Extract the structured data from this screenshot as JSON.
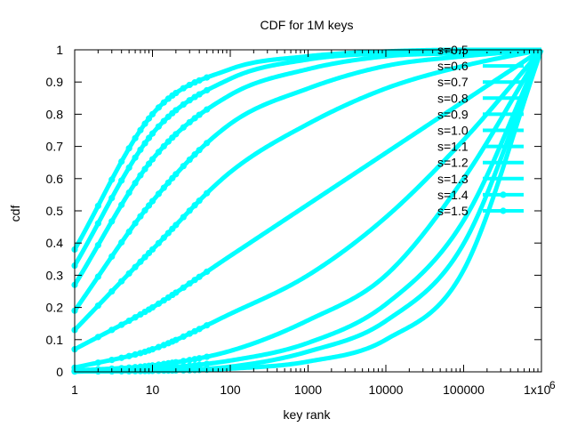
{
  "chart_data": {
    "type": "line",
    "title": "CDF for 1M keys",
    "xlabel": "key rank",
    "ylabel": "cdf",
    "x_scale": "log",
    "xlim": [
      1,
      1000000
    ],
    "ylim": [
      0,
      1
    ],
    "grid": false,
    "legend_position": "right",
    "series_color": "#00ffff",
    "x_ticks": [
      {
        "value": 1,
        "label": "1"
      },
      {
        "value": 10,
        "label": "10"
      },
      {
        "value": 100,
        "label": "100"
      },
      {
        "value": 1000,
        "label": "1000"
      },
      {
        "value": 10000,
        "label": "10000"
      },
      {
        "value": 100000,
        "label": "100000"
      },
      {
        "value": 1000000,
        "label": "1x10",
        "exponent": "6"
      }
    ],
    "y_ticks": [
      {
        "value": 0,
        "label": "0"
      },
      {
        "value": 0.1,
        "label": "0.1"
      },
      {
        "value": 0.2,
        "label": "0.2"
      },
      {
        "value": 0.3,
        "label": "0.3"
      },
      {
        "value": 0.4,
        "label": "0.4"
      },
      {
        "value": 0.5,
        "label": "0.5"
      },
      {
        "value": 0.6,
        "label": "0.6"
      },
      {
        "value": 0.7,
        "label": "0.7"
      },
      {
        "value": 0.8,
        "label": "0.8"
      },
      {
        "value": 0.9,
        "label": "0.9"
      },
      {
        "value": 1,
        "label": "1"
      }
    ],
    "x": [
      1,
      10,
      100,
      1000,
      10000,
      100000,
      1000000
    ],
    "series": [
      {
        "name": "s=0.5",
        "s": 0.5,
        "values": [
          0.001,
          0.003,
          0.01,
          0.032,
          0.1,
          0.316,
          1.0
        ]
      },
      {
        "name": "s=0.6",
        "s": 0.6,
        "values": [
          0.001,
          0.004,
          0.016,
          0.063,
          0.158,
          0.398,
          1.0
        ]
      },
      {
        "name": "s=0.7",
        "s": 0.7,
        "values": [
          0.002,
          0.01,
          0.035,
          0.09,
          0.21,
          0.47,
          1.0
        ]
      },
      {
        "name": "s=0.8",
        "s": 0.8,
        "values": [
          0.004,
          0.02,
          0.065,
          0.16,
          0.3,
          0.6,
          1.0
        ]
      },
      {
        "name": "s=0.9",
        "s": 0.9,
        "values": [
          0.013,
          0.07,
          0.18,
          0.3,
          0.48,
          0.72,
          1.0
        ]
      },
      {
        "name": "s=1.0",
        "s": 1.0,
        "values": [
          0.07,
          0.2,
          0.36,
          0.52,
          0.68,
          0.84,
          1.0
        ]
      },
      {
        "name": "s=1.1",
        "s": 1.1,
        "values": [
          0.13,
          0.38,
          0.62,
          0.77,
          0.88,
          0.95,
          1.0
        ]
      },
      {
        "name": "s=1.2",
        "s": 1.2,
        "values": [
          0.19,
          0.53,
          0.77,
          0.88,
          0.95,
          0.98,
          1.0
        ]
      },
      {
        "name": "s=1.3",
        "s": 1.3,
        "values": [
          0.27,
          0.66,
          0.86,
          0.94,
          0.98,
          0.99,
          1.0
        ]
      },
      {
        "name": "s=1.4",
        "s": 1.4,
        "values": [
          0.33,
          0.74,
          0.91,
          0.97,
          0.99,
          1.0,
          1.0
        ]
      },
      {
        "name": "s=1.5",
        "s": 1.5,
        "values": [
          0.38,
          0.8,
          0.94,
          0.98,
          0.995,
          1.0,
          1.0
        ]
      }
    ]
  }
}
